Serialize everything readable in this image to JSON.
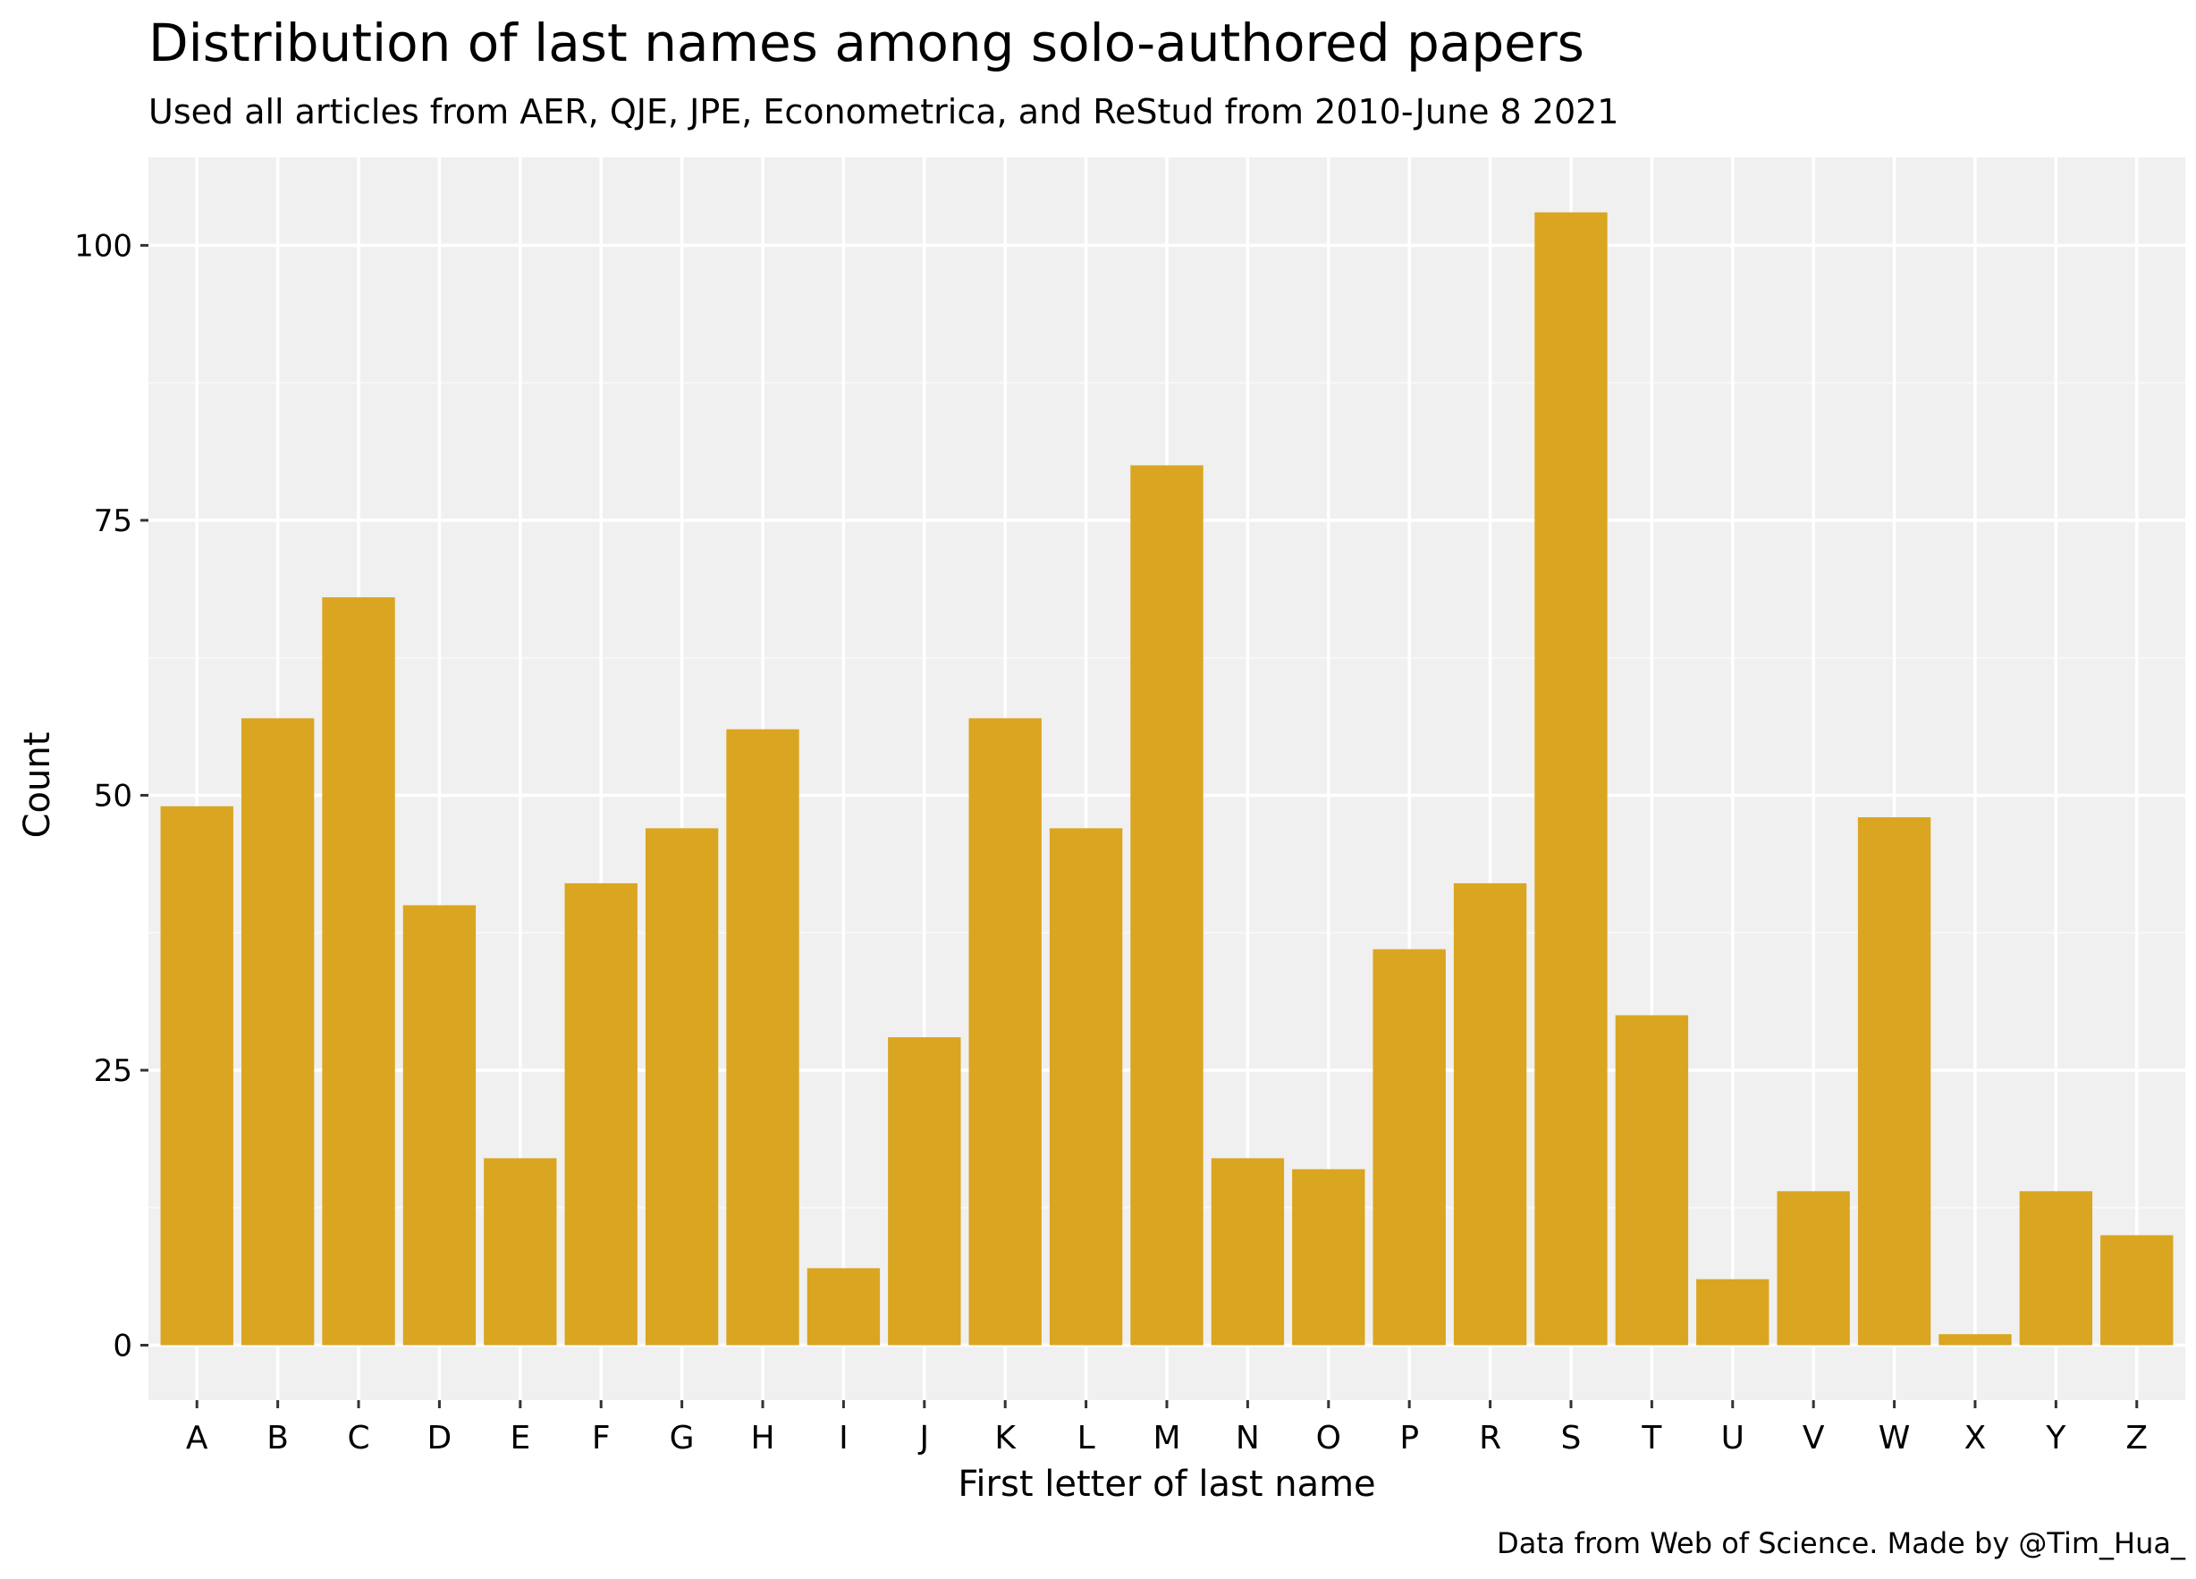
{
  "chart_data": {
    "type": "bar",
    "title": "Distribution of last names among solo-authored papers",
    "subtitle": "Used all articles from AER, QJE, JPE, Econometrica, and ReStud from 2010-June 8 2021",
    "xlabel": "First letter of last name",
    "ylabel": "Count",
    "caption": "Data from Web of Science. Made by @Tim_Hua_",
    "categories": [
      "A",
      "B",
      "C",
      "D",
      "E",
      "F",
      "G",
      "H",
      "I",
      "J",
      "K",
      "L",
      "M",
      "N",
      "O",
      "P",
      "R",
      "S",
      "T",
      "U",
      "V",
      "W",
      "X",
      "Y",
      "Z"
    ],
    "values": [
      49,
      57,
      68,
      40,
      17,
      42,
      47,
      56,
      7,
      28,
      57,
      47,
      80,
      17,
      16,
      36,
      42,
      103,
      30,
      6,
      14,
      48,
      1,
      14,
      10
    ],
    "ylim": [
      -5,
      108
    ],
    "yticks": [
      0,
      25,
      50,
      75,
      100
    ],
    "grid": true,
    "legend": "none",
    "colors": {
      "bar": "#DAA520",
      "panel": "#F0F0F0",
      "grid_major": "#FFFFFF",
      "grid_minor": "#F8F8F8",
      "text": "#000000",
      "tick": "#333333"
    }
  }
}
